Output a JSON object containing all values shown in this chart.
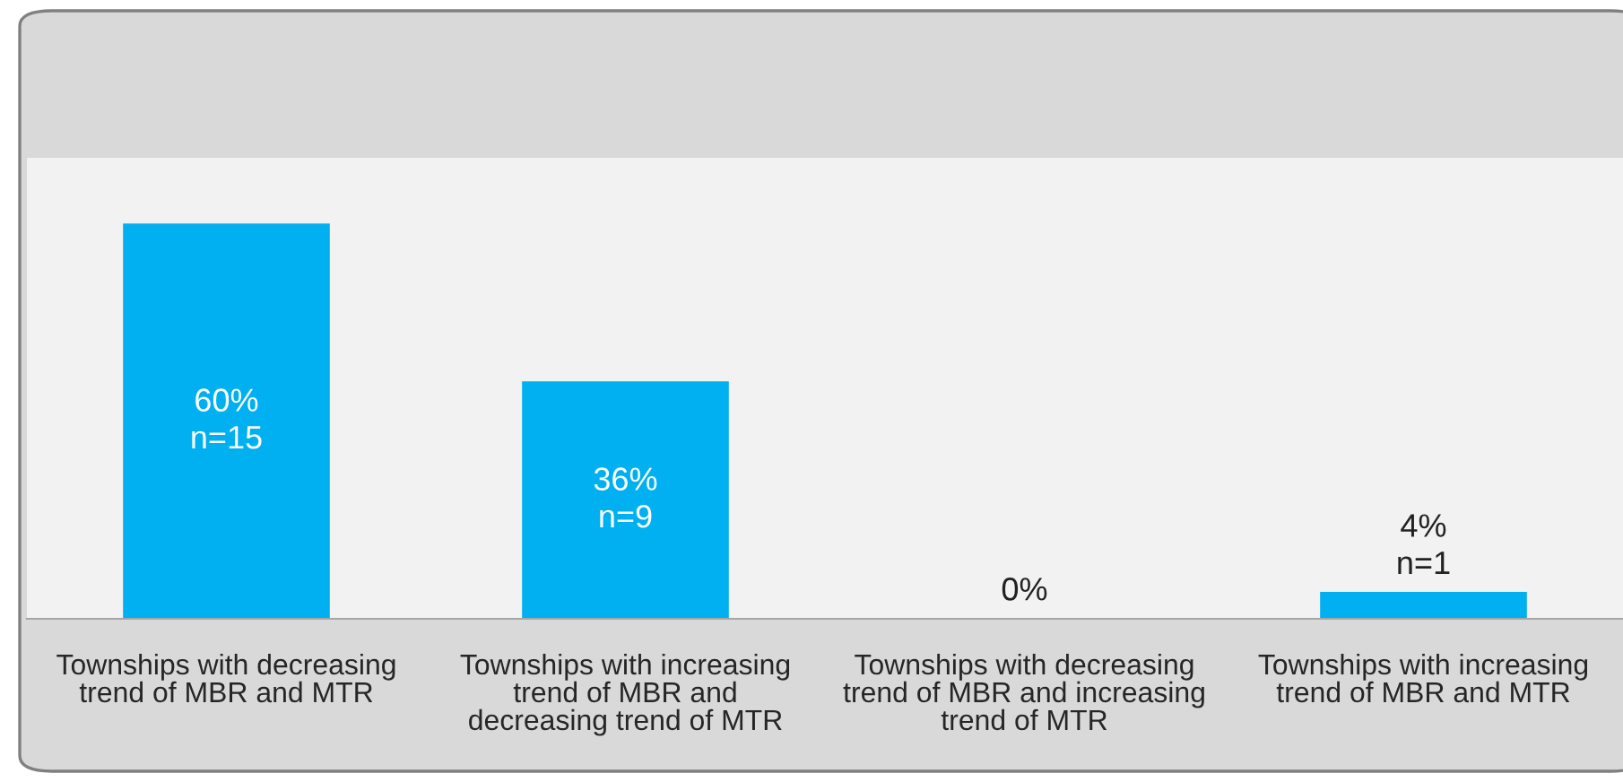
{
  "chart_data": {
    "type": "bar",
    "categories": [
      "Townships with decreasing\ntrend of MBR and MTR",
      "Townships with increasing\ntrend of MBR and\ndecreasing trend of MTR",
      "Townships with decreasing\ntrend of MBR and increasing\ntrend of MTR",
      "Townships with increasing\ntrend of MBR and MTR"
    ],
    "values": [
      60,
      36,
      0,
      4
    ],
    "value_labels": [
      "60%\nn=15",
      "36%\nn=9",
      "0%",
      "4%\nn=1"
    ],
    "color": "#00b0f0",
    "grid": false,
    "legend": false
  }
}
